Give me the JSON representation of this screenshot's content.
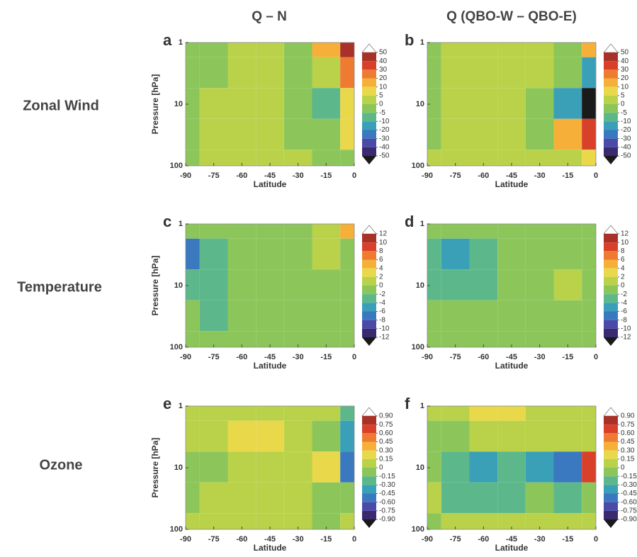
{
  "figure": {
    "column_titles": [
      "Q – N",
      "Q (QBO-W – QBO-E)"
    ],
    "row_labels": [
      "Zonal Wind",
      "Temperature",
      "Ozone"
    ]
  },
  "chart_data": [
    {
      "type": "contour",
      "panel": "a",
      "xlabel": "Latitude",
      "ylabel": "Pressure [hPa]",
      "x": [
        -90,
        -75,
        -60,
        -45,
        -30,
        -15,
        0
      ],
      "y": [
        1,
        3,
        10,
        30,
        100
      ],
      "log_y": true,
      "values": [
        [
          -2,
          -2,
          3,
          4,
          -1,
          15,
          45
        ],
        [
          -2,
          -1,
          4,
          3,
          -2,
          3,
          25
        ],
        [
          -1,
          1,
          3,
          2,
          -2,
          -8,
          5
        ],
        [
          -1,
          2,
          2,
          1,
          -2,
          -4,
          8
        ],
        [
          -2,
          1,
          1,
          1,
          1,
          -1,
          -2
        ]
      ],
      "xlim": [
        -90,
        0
      ],
      "xticks": [
        -90,
        -75,
        -60,
        -45,
        -30,
        -15,
        0
      ],
      "ylim": [
        1,
        100
      ],
      "yticks": [
        1,
        10,
        100
      ],
      "colorbar": {
        "levels": [
          50,
          40,
          30,
          20,
          10,
          5,
          0,
          -5,
          -10,
          -20,
          -30,
          -40,
          -50
        ],
        "colors": [
          "#ffffff",
          "#a83228",
          "#d8402a",
          "#ef7a32",
          "#f6b03a",
          "#e8d84a",
          "#b9d24a",
          "#8cc65a",
          "#5cb88a",
          "#3aa0b8",
          "#3a78c0",
          "#4a4aa8",
          "#3a2a70",
          "#1a1a1a"
        ]
      }
    },
    {
      "type": "contour",
      "panel": "b",
      "xlabel": "Latitude",
      "ylabel": null,
      "x": [
        -90,
        -75,
        -60,
        -45,
        -30,
        -15,
        0
      ],
      "y": [
        1,
        3,
        10,
        30,
        100
      ],
      "log_y": true,
      "values": [
        [
          -2,
          2,
          3,
          3,
          3,
          -1,
          10
        ],
        [
          -2,
          3,
          4,
          4,
          2,
          -3,
          -20
        ],
        [
          -2,
          2,
          3,
          2,
          -2,
          -15,
          -55
        ],
        [
          -3,
          2,
          2,
          2,
          -1,
          10,
          35
        ],
        [
          1,
          2,
          1,
          1,
          1,
          3,
          5
        ]
      ],
      "xlim": [
        -90,
        0
      ],
      "xticks": [
        -90,
        -75,
        -60,
        -45,
        -30,
        -15,
        0
      ],
      "ylim": [
        1,
        100
      ],
      "yticks": [
        1,
        10,
        100
      ],
      "colorbar": {
        "levels": [
          50,
          40,
          30,
          20,
          10,
          5,
          0,
          -5,
          -10,
          -20,
          -30,
          -40,
          -50
        ],
        "colors": [
          "#ffffff",
          "#a83228",
          "#d8402a",
          "#ef7a32",
          "#f6b03a",
          "#e8d84a",
          "#b9d24a",
          "#8cc65a",
          "#5cb88a",
          "#3aa0b8",
          "#3a78c0",
          "#4a4aa8",
          "#3a2a70",
          "#1a1a1a"
        ]
      }
    },
    {
      "type": "contour",
      "panel": "c",
      "xlabel": "Latitude",
      "ylabel": "Pressure [hPa]",
      "x": [
        -90,
        -75,
        -60,
        -45,
        -30,
        -15,
        0
      ],
      "y": [
        1,
        3,
        10,
        30,
        100
      ],
      "log_y": true,
      "values": [
        [
          -1,
          -1,
          -1,
          -1,
          -2,
          0.5,
          5
        ],
        [
          -7,
          -4,
          -1,
          -1,
          -1,
          1,
          -1
        ],
        [
          -4,
          -3,
          -2,
          -1,
          -1,
          -2,
          -1
        ],
        [
          -2,
          -3,
          -1,
          -1,
          -1,
          -1,
          -1
        ],
        [
          -1,
          -1,
          -1,
          -1,
          -1,
          -1,
          -1
        ]
      ],
      "xlim": [
        -90,
        0
      ],
      "xticks": [
        -90,
        -75,
        -60,
        -45,
        -30,
        -15,
        0
      ],
      "ylim": [
        1,
        100
      ],
      "yticks": [
        1,
        10,
        100
      ],
      "colorbar": {
        "levels": [
          12,
          10,
          8,
          6,
          4,
          2,
          0,
          -2,
          -4,
          -6,
          -8,
          -10,
          -12
        ],
        "colors": [
          "#ffffff",
          "#a83228",
          "#d8402a",
          "#ef7a32",
          "#f6b03a",
          "#e8d84a",
          "#b9d24a",
          "#8cc65a",
          "#5cb88a",
          "#3aa0b8",
          "#3a78c0",
          "#4a4aa8",
          "#3a2a70",
          "#1a1a1a"
        ]
      }
    },
    {
      "type": "contour",
      "panel": "d",
      "xlabel": "Latitude",
      "ylabel": null,
      "x": [
        -90,
        -75,
        -60,
        -45,
        -30,
        -15,
        0
      ],
      "y": [
        1,
        3,
        10,
        30,
        100
      ],
      "log_y": true,
      "values": [
        [
          -1,
          -1,
          -1,
          -1,
          -1,
          -1,
          -1
        ],
        [
          -4,
          -5,
          -3,
          -1,
          -1,
          -1,
          -1
        ],
        [
          -3,
          -4,
          -3,
          -1,
          -1,
          1,
          -1
        ],
        [
          -2,
          -2,
          -1,
          -1,
          -1,
          -1,
          -1
        ],
        [
          -1,
          -1,
          -1,
          -1,
          -1,
          -1,
          -1
        ]
      ],
      "xlim": [
        -90,
        0
      ],
      "xticks": [
        -90,
        -75,
        -60,
        -45,
        -30,
        -15,
        0
      ],
      "ylim": [
        1,
        100
      ],
      "yticks": [
        1,
        10,
        100
      ],
      "colorbar": {
        "levels": [
          12,
          10,
          8,
          6,
          4,
          2,
          0,
          -2,
          -4,
          -6,
          -8,
          -10,
          -12
        ],
        "colors": [
          "#ffffff",
          "#a83228",
          "#d8402a",
          "#ef7a32",
          "#f6b03a",
          "#e8d84a",
          "#b9d24a",
          "#8cc65a",
          "#5cb88a",
          "#3aa0b8",
          "#3a78c0",
          "#4a4aa8",
          "#3a2a70",
          "#1a1a1a"
        ]
      }
    },
    {
      "type": "contour",
      "panel": "e",
      "xlabel": "Latitude",
      "ylabel": "Pressure [hPa]",
      "x": [
        -90,
        -75,
        -60,
        -45,
        -30,
        -15,
        0
      ],
      "y": [
        1,
        3,
        10,
        30,
        100
      ],
      "log_y": true,
      "values": [
        [
          0.05,
          0.05,
          0.05,
          0.05,
          0.05,
          0.05,
          -0.2
        ],
        [
          0.05,
          0.1,
          0.2,
          0.16,
          0.05,
          -0.05,
          -0.4
        ],
        [
          -0.1,
          -0.05,
          0.05,
          0.05,
          0.05,
          0.2,
          -0.5
        ],
        [
          -0.05,
          0.05,
          0.05,
          0.05,
          0.05,
          -0.05,
          -0.1
        ],
        [
          0.05,
          0.05,
          0.05,
          0.05,
          0.05,
          -0.1,
          0.05
        ]
      ],
      "xlim": [
        -90,
        0
      ],
      "xticks": [
        -90,
        -75,
        -60,
        -45,
        -30,
        -15,
        0
      ],
      "ylim": [
        1,
        100
      ],
      "yticks": [
        1,
        10,
        100
      ],
      "colorbar": {
        "levels": [
          {
            "value": 0.9,
            "label": "0.90"
          },
          0.75,
          {
            "value": 0.6,
            "label": "0.60"
          },
          0.45,
          {
            "value": 0.3,
            "label": "0.30"
          },
          0.15,
          0,
          -0.15,
          {
            "value": -0.3,
            "label": "-0.30"
          },
          -0.45,
          {
            "value": -0.6,
            "label": "-0.60"
          },
          -0.75,
          {
            "value": -0.9,
            "label": "-0.90"
          }
        ],
        "colors": [
          "#ffffff",
          "#a83228",
          "#d8402a",
          "#ef7a32",
          "#f6b03a",
          "#e8d84a",
          "#b9d24a",
          "#8cc65a",
          "#5cb88a",
          "#3aa0b8",
          "#3a78c0",
          "#4a4aa8",
          "#3a2a70",
          "#1a1a1a"
        ]
      }
    },
    {
      "type": "contour",
      "panel": "f",
      "xlabel": "Latitude",
      "ylabel": null,
      "x": [
        -90,
        -75,
        -60,
        -45,
        -30,
        -15,
        0
      ],
      "y": [
        1,
        3,
        10,
        30,
        100
      ],
      "log_y": true,
      "values": [
        [
          0.05,
          0.05,
          0.16,
          0.16,
          0.05,
          0.05,
          0.05
        ],
        [
          -0.1,
          -0.05,
          0.05,
          0.1,
          0.1,
          0.1,
          0.05
        ],
        [
          -0.1,
          -0.25,
          -0.35,
          -0.25,
          -0.35,
          -0.5,
          0.6
        ],
        [
          0.05,
          -0.2,
          -0.25,
          -0.16,
          -0.1,
          -0.16,
          -0.1
        ],
        [
          -0.05,
          0.05,
          0.05,
          0.1,
          0.05,
          0.05,
          0.05
        ]
      ],
      "xlim": [
        -90,
        0
      ],
      "xticks": [
        -90,
        -75,
        -60,
        -45,
        -30,
        -15,
        0
      ],
      "ylim": [
        1,
        100
      ],
      "yticks": [
        1,
        10,
        100
      ],
      "colorbar": {
        "levels": [
          {
            "value": 0.9,
            "label": "0.90"
          },
          0.75,
          {
            "value": 0.6,
            "label": "0.60"
          },
          0.45,
          {
            "value": 0.3,
            "label": "0.30"
          },
          0.15,
          0,
          -0.15,
          {
            "value": -0.3,
            "label": "-0.30"
          },
          -0.45,
          {
            "value": -0.6,
            "label": "-0.60"
          },
          -0.75,
          {
            "value": -0.9,
            "label": "-0.90"
          }
        ],
        "colors": [
          "#ffffff",
          "#a83228",
          "#d8402a",
          "#ef7a32",
          "#f6b03a",
          "#e8d84a",
          "#b9d24a",
          "#8cc65a",
          "#5cb88a",
          "#3aa0b8",
          "#3a78c0",
          "#4a4aa8",
          "#3a2a70",
          "#1a1a1a"
        ]
      }
    }
  ]
}
